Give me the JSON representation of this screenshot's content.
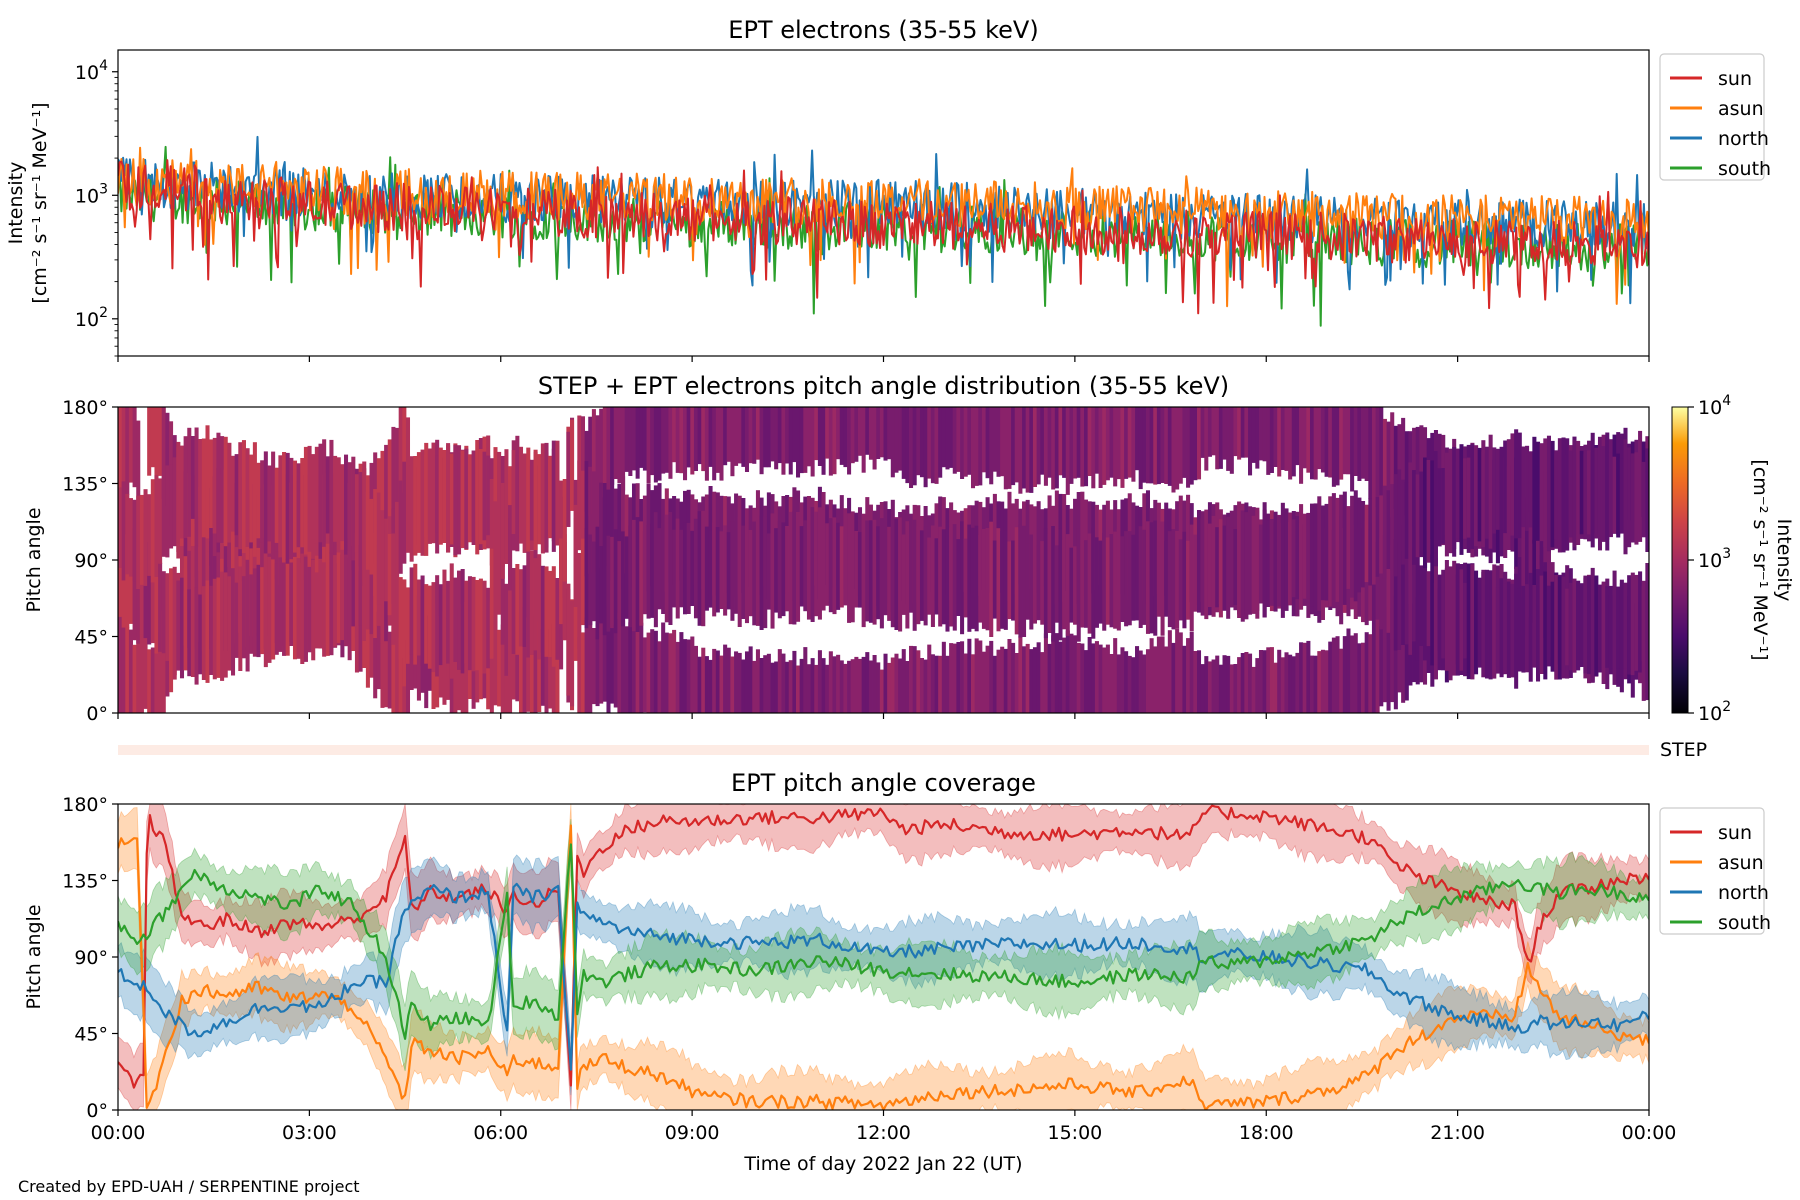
{
  "credit": "Created by EPD-UAH / SERPENTINE project",
  "chart_data": [
    {
      "type": "line",
      "title": "EPT electrons (35-55 keV)",
      "ylabel_line1": "Intensity",
      "ylabel_line2": "[cm⁻² s⁻¹ sr⁻¹ MeV⁻¹]",
      "yscale": "log",
      "ylim": [
        50,
        15000
      ],
      "yticks": [
        {
          "value": 100,
          "base": "10",
          "exp": "2"
        },
        {
          "value": 1000,
          "base": "10",
          "exp": "3"
        },
        {
          "value": 10000,
          "base": "10",
          "exp": "4"
        }
      ],
      "xlim": [
        0,
        24
      ],
      "legend": "upper-right-outside",
      "series": [
        {
          "name": "sun",
          "color": "#d62728",
          "level_hours": [
            0,
            3,
            6,
            9,
            12,
            15,
            18,
            21,
            24
          ],
          "level_values": [
            1200,
            850,
            750,
            650,
            580,
            520,
            480,
            420,
            380
          ]
        },
        {
          "name": "asun",
          "color": "#ff7f0e",
          "level_hours": [
            0,
            3,
            6,
            9,
            12,
            15,
            18,
            21,
            24
          ],
          "level_values": [
            1300,
            1100,
            1000,
            950,
            900,
            800,
            700,
            650,
            620
          ]
        },
        {
          "name": "north",
          "color": "#1f77b4",
          "level_hours": [
            0,
            3,
            6,
            9,
            12,
            15,
            18,
            21,
            24
          ],
          "level_values": [
            1300,
            1050,
            950,
            900,
            850,
            750,
            650,
            600,
            560
          ]
        },
        {
          "name": "south",
          "color": "#2ca02c",
          "level_hours": [
            0,
            3,
            6,
            9,
            12,
            15,
            18,
            21,
            24
          ],
          "level_values": [
            1000,
            800,
            700,
            600,
            550,
            500,
            450,
            400,
            380
          ]
        }
      ]
    },
    {
      "type": "heatmap",
      "title": "STEP + EPT electrons pitch angle distribution (35-55 keV)",
      "ylabel": "Pitch angle",
      "ylim": [
        0,
        180
      ],
      "yticks": [
        "0°",
        "45°",
        "90°",
        "135°",
        "180°"
      ],
      "xlim": [
        0,
        24
      ],
      "colorbar": {
        "label_line1": "Intensity",
        "label_line2": "[cm⁻² s⁻¹ sr⁻¹ MeV⁻¹]",
        "scale": "log",
        "range": [
          100,
          10000
        ],
        "colormap": "inferno",
        "ticks": [
          {
            "base": "10",
            "exp": "2"
          },
          {
            "base": "10",
            "exp": "3"
          },
          {
            "base": "10",
            "exp": "4"
          }
        ]
      },
      "step_strip_label": "STEP"
    },
    {
      "type": "line",
      "title": "EPT pitch angle coverage",
      "ylabel": "Pitch angle",
      "ylim": [
        0,
        180
      ],
      "yticks": [
        "0°",
        "45°",
        "90°",
        "135°",
        "180°"
      ],
      "xlim": [
        0,
        24
      ],
      "xticks": [
        "00:00",
        "03:00",
        "06:00",
        "09:00",
        "12:00",
        "15:00",
        "18:00",
        "21:00",
        "00:00"
      ],
      "xlabel": "Time of day 2022 Jan 22 (UT)",
      "legend": "upper-right-outside",
      "series": [
        {
          "name": "sun",
          "color": "#d62728",
          "x": [
            0,
            0.25,
            0.4,
            0.45,
            0.5,
            0.7,
            1.0,
            1.3,
            1.7,
            2.2,
            2.7,
            3.2,
            3.7,
            4.2,
            4.5,
            4.6,
            4.9,
            5.3,
            5.8,
            6.1,
            6.2,
            6.5,
            6.9,
            7.1,
            7.2,
            7.3,
            7.6,
            8.0,
            8.5,
            9.2,
            10,
            11,
            12,
            12.3,
            13,
            14,
            15,
            16,
            16.8,
            17.0,
            17.3,
            18,
            19,
            19.6,
            20.0,
            20.5,
            21.0,
            21.5,
            21.9,
            22.1,
            22.3,
            22.6,
            23.0,
            23.5,
            24
          ],
          "y": [
            25,
            15,
            20,
            150,
            170,
            160,
            115,
            108,
            112,
            105,
            110,
            108,
            112,
            125,
            160,
            118,
            128,
            125,
            130,
            115,
            128,
            120,
            130,
            15,
            150,
            140,
            155,
            165,
            170,
            170,
            172,
            172,
            175,
            165,
            168,
            163,
            162,
            165,
            160,
            175,
            175,
            173,
            165,
            160,
            145,
            135,
            128,
            122,
            120,
            85,
            110,
            128,
            130,
            135,
            138
          ]
        },
        {
          "name": "asun",
          "color": "#ff7f0e",
          "x": [
            0,
            0.3,
            0.45,
            0.55,
            0.8,
            1.0,
            1.3,
            1.7,
            2.2,
            2.7,
            3.2,
            3.7,
            4.2,
            4.5,
            4.6,
            4.9,
            5.3,
            5.8,
            6.1,
            6.2,
            6.5,
            6.9,
            7.1,
            7.2,
            7.3,
            7.6,
            8.0,
            8.5,
            9.2,
            10,
            11,
            12,
            13,
            14,
            15,
            16,
            16.8,
            17.0,
            17.3,
            18,
            19,
            19.6,
            20.0,
            20.5,
            21.0,
            21.5,
            21.9,
            22.1,
            22.3,
            22.6,
            23.0,
            23.5,
            24
          ],
          "y": [
            155,
            160,
            5,
            10,
            40,
            65,
            70,
            68,
            72,
            65,
            68,
            60,
            30,
            5,
            40,
            35,
            30,
            35,
            20,
            30,
            28,
            25,
            170,
            15,
            25,
            30,
            25,
            20,
            8,
            5,
            5,
            3,
            10,
            12,
            15,
            10,
            18,
            3,
            3,
            5,
            12,
            20,
            35,
            45,
            55,
            55,
            55,
            85,
            70,
            55,
            50,
            45,
            40
          ]
        },
        {
          "name": "north",
          "color": "#1f77b4",
          "x": [
            0,
            0.3,
            0.5,
            0.8,
            1.2,
            1.7,
            2.2,
            2.7,
            3.2,
            3.7,
            4.2,
            4.5,
            4.6,
            4.9,
            5.3,
            5.8,
            6.1,
            6.2,
            6.5,
            6.9,
            7.1,
            7.2,
            7.3,
            7.6,
            8.0,
            8.5,
            9.2,
            10,
            11,
            12,
            13,
            14,
            15,
            16,
            16.8,
            17.0,
            17.3,
            18,
            19,
            19.6,
            20.0,
            20.5,
            21.0,
            21.5,
            21.9,
            22.1,
            22.3,
            22.6,
            23.0,
            23.5,
            24
          ],
          "y": [
            80,
            75,
            70,
            55,
            45,
            52,
            60,
            62,
            60,
            75,
            75,
            120,
            120,
            130,
            125,
            128,
            45,
            130,
            125,
            128,
            20,
            125,
            115,
            110,
            105,
            102,
            100,
            98,
            100,
            92,
            95,
            98,
            97,
            98,
            95,
            90,
            92,
            90,
            85,
            82,
            70,
            62,
            55,
            52,
            48,
            50,
            52,
            50,
            52,
            50,
            55
          ]
        },
        {
          "name": "south",
          "color": "#2ca02c",
          "x": [
            0,
            0.3,
            0.5,
            0.8,
            1.2,
            1.7,
            2.2,
            2.7,
            3.2,
            3.7,
            4.2,
            4.5,
            4.6,
            4.9,
            5.3,
            5.8,
            6.1,
            6.2,
            6.5,
            6.9,
            7.1,
            7.2,
            7.3,
            7.6,
            8.0,
            8.5,
            9.2,
            10,
            11,
            12,
            13,
            14,
            15,
            16,
            16.8,
            17.0,
            17.3,
            18,
            19,
            19.6,
            20.0,
            20.5,
            21.0,
            21.5,
            21.9,
            22.1,
            22.3,
            22.6,
            23.0,
            23.5,
            24
          ],
          "y": [
            110,
            100,
            105,
            120,
            140,
            130,
            125,
            120,
            130,
            120,
            90,
            45,
            60,
            50,
            55,
            50,
            125,
            60,
            65,
            55,
            160,
            60,
            80,
            75,
            80,
            85,
            85,
            82,
            88,
            82,
            80,
            78,
            75,
            80,
            78,
            88,
            85,
            88,
            95,
            100,
            110,
            118,
            125,
            130,
            135,
            132,
            130,
            128,
            130,
            128,
            125
          ]
        }
      ]
    }
  ]
}
